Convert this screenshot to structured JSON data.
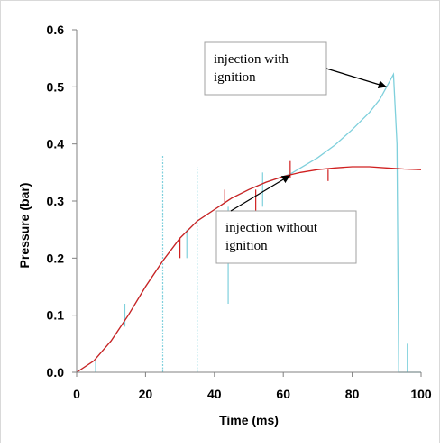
{
  "chart_data": {
    "type": "line",
    "title": "",
    "xlabel": "Time (ms)",
    "ylabel": "Pressure (bar)",
    "xlim": [
      0,
      100
    ],
    "ylim": [
      0,
      0.6
    ],
    "xticks": [
      "0",
      "20",
      "40",
      "60",
      "80",
      "100"
    ],
    "yticks": [
      "0.0",
      "0.1",
      "0.2",
      "0.3",
      "0.4",
      "0.5",
      "0.6"
    ],
    "grid": false,
    "legend": "none",
    "series": [
      {
        "color": "#7fd0dc",
        "points": [
          [
            0,
            0.0
          ],
          [
            5,
            0.02
          ],
          [
            10,
            0.055
          ],
          [
            15,
            0.1
          ],
          [
            20,
            0.15
          ],
          [
            25,
            0.195
          ],
          [
            30,
            0.235
          ],
          [
            35,
            0.265
          ],
          [
            40,
            0.285
          ],
          [
            45,
            0.305
          ],
          [
            50,
            0.32
          ],
          [
            55,
            0.333
          ],
          [
            60,
            0.343
          ],
          [
            62,
            0.347
          ],
          [
            65,
            0.358
          ],
          [
            70,
            0.376
          ],
          [
            75,
            0.398
          ],
          [
            80,
            0.425
          ],
          [
            85,
            0.455
          ],
          [
            88,
            0.478
          ],
          [
            90,
            0.5
          ],
          [
            92,
            0.522
          ],
          [
            93,
            0.4
          ],
          [
            93.5,
            0.0
          ],
          [
            100,
            0.0
          ]
        ],
        "spikes": [
          [
            25,
            0.0,
            0.38
          ],
          [
            35,
            0.0,
            0.36
          ],
          [
            5.5,
            0.0,
            0.02
          ],
          [
            14,
            0.08,
            0.12
          ],
          [
            32,
            0.2,
            0.25
          ],
          [
            44,
            0.12,
            0.29
          ],
          [
            54,
            0.29,
            0.35
          ],
          [
            96,
            0.0,
            0.05
          ]
        ]
      },
      {
        "color": "#d02020",
        "points": [
          [
            0,
            0.0
          ],
          [
            5,
            0.02
          ],
          [
            10,
            0.055
          ],
          [
            15,
            0.1
          ],
          [
            20,
            0.15
          ],
          [
            25,
            0.195
          ],
          [
            30,
            0.235
          ],
          [
            35,
            0.265
          ],
          [
            40,
            0.285
          ],
          [
            45,
            0.305
          ],
          [
            50,
            0.32
          ],
          [
            55,
            0.333
          ],
          [
            60,
            0.343
          ],
          [
            65,
            0.35
          ],
          [
            70,
            0.355
          ],
          [
            75,
            0.358
          ],
          [
            80,
            0.36
          ],
          [
            85,
            0.36
          ],
          [
            90,
            0.358
          ],
          [
            95,
            0.356
          ],
          [
            100,
            0.355
          ]
        ],
        "spikes": [
          [
            30,
            0.2,
            0.235
          ],
          [
            43,
            0.295,
            0.32
          ],
          [
            52,
            0.28,
            0.32
          ],
          [
            62,
            0.34,
            0.37
          ],
          [
            73,
            0.335,
            0.355
          ]
        ]
      }
    ],
    "annotations": [
      {
        "lines": [
          "injection with",
          "ignition"
        ],
        "target": [
          90,
          0.5
        ]
      },
      {
        "lines": [
          "injection without",
          "ignition"
        ],
        "target": [
          62,
          0.345
        ]
      }
    ]
  }
}
